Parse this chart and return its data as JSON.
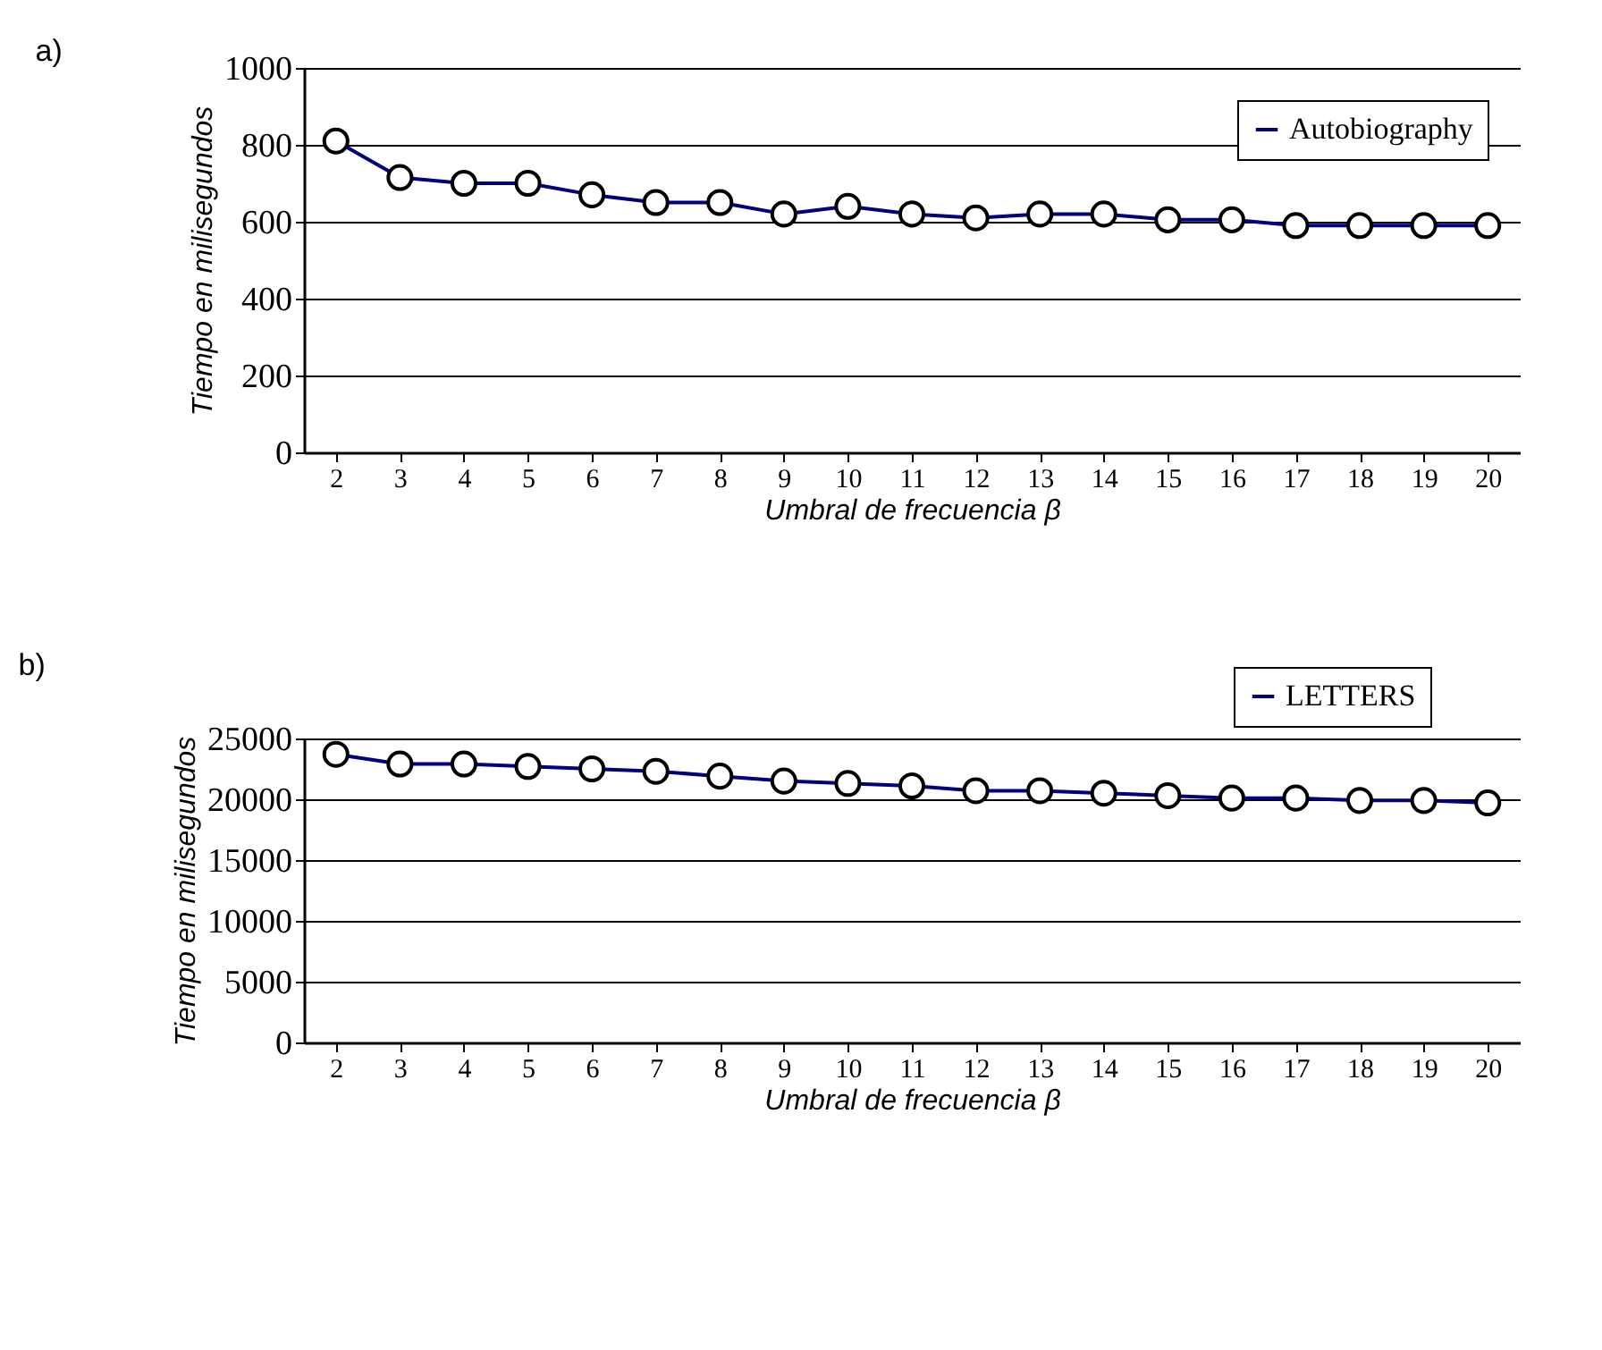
{
  "chart_data": [
    {
      "type": "line",
      "annotations": [
        "a)"
      ],
      "xlabel": "Umbral de frecuencia β",
      "ylabel": "Tiempo en milisegundos",
      "categories": [
        "2",
        "3",
        "4",
        "5",
        "6",
        "7",
        "8",
        "9",
        "10",
        "11",
        "12",
        "13",
        "14",
        "15",
        "16",
        "17",
        "18",
        "19",
        "20"
      ],
      "series": [
        {
          "name": "Autobiography",
          "color": "#000080",
          "values": [
            810,
            715,
            700,
            700,
            670,
            650,
            650,
            620,
            640,
            620,
            610,
            620,
            620,
            605,
            605,
            590,
            590,
            590,
            590
          ]
        }
      ],
      "ylim": [
        0,
        1000
      ],
      "yticks": [
        0,
        200,
        400,
        600,
        800,
        1000
      ],
      "grid": "y",
      "legend": "top right",
      "marker": "circle",
      "line_style": "solid"
    },
    {
      "type": "line",
      "annotations": [
        "b)"
      ],
      "xlabel": "Umbral de frecuencia β",
      "ylabel": "Tiempo en milisegundos",
      "categories": [
        "2",
        "3",
        "4",
        "5",
        "6",
        "7",
        "8",
        "9",
        "10",
        "11",
        "12",
        "13",
        "14",
        "15",
        "16",
        "17",
        "18",
        "19",
        "20"
      ],
      "series": [
        {
          "name": "LETTERS",
          "color": "#000080",
          "values": [
            23700,
            22900,
            22900,
            22700,
            22500,
            22300,
            21900,
            21500,
            21300,
            21100,
            20700,
            20700,
            20500,
            20300,
            20100,
            20100,
            19900,
            19900,
            19700
          ]
        }
      ],
      "ylim": [
        0,
        25000
      ],
      "yticks": [
        0,
        5000,
        10000,
        15000,
        20000,
        25000
      ],
      "grid": "y",
      "legend": "top right",
      "marker": "circle",
      "line_style": "solid"
    }
  ]
}
